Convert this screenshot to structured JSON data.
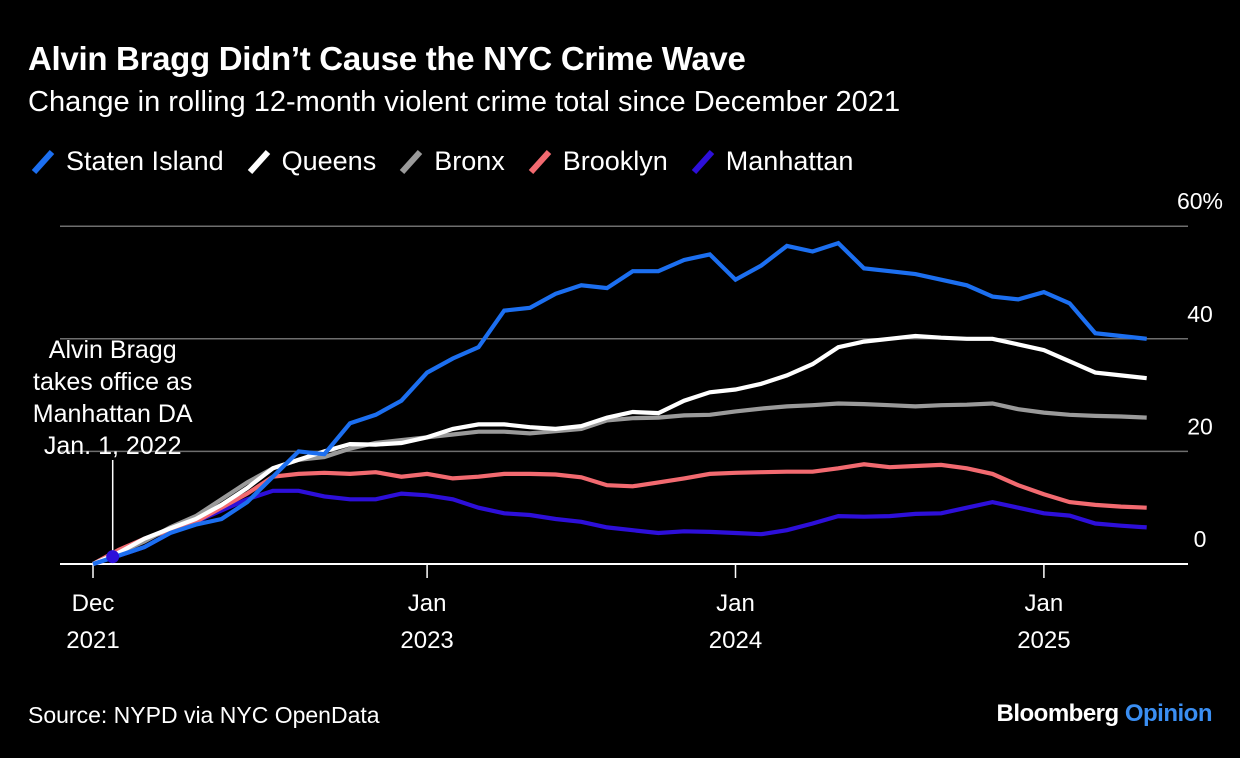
{
  "title": "Alvin Bragg Didn’t Cause the NYC Crime Wave",
  "subtitle": "Change in rolling 12-month violent crime total since December 2021",
  "source": "Source: NYPD via NYC OpenData",
  "brand": {
    "name": "Bloomberg",
    "suffix": "Opinion",
    "suffix_color": "#3a8ef2"
  },
  "annotation": {
    "lines": [
      "Alvin Bragg",
      "takes office as",
      "Manhattan DA",
      "Jan. 1, 2022"
    ],
    "x": "2022-01",
    "marker_color": "#2d0fd9"
  },
  "chart_data": {
    "type": "line",
    "x": [
      "2021-12",
      "2022-01",
      "2022-02",
      "2022-03",
      "2022-04",
      "2022-05",
      "2022-06",
      "2022-07",
      "2022-08",
      "2022-09",
      "2022-10",
      "2022-11",
      "2022-12",
      "2023-01",
      "2023-02",
      "2023-03",
      "2023-04",
      "2023-05",
      "2023-06",
      "2023-07",
      "2023-08",
      "2023-09",
      "2023-10",
      "2023-11",
      "2023-12",
      "2024-01",
      "2024-02",
      "2024-03",
      "2024-04",
      "2024-05",
      "2024-06",
      "2024-07",
      "2024-08",
      "2024-09",
      "2024-10",
      "2024-11",
      "2024-12",
      "2025-01",
      "2025-02",
      "2025-03",
      "2025-04",
      "2025-05"
    ],
    "x_ticks": [
      {
        "x": "2021-12",
        "label": [
          "Dec",
          "2021"
        ]
      },
      {
        "x": "2023-01",
        "label": [
          "Jan",
          "2023"
        ]
      },
      {
        "x": "2024-01",
        "label": [
          "Jan",
          "2024"
        ]
      },
      {
        "x": "2025-01",
        "label": [
          "Jan",
          "2025"
        ]
      }
    ],
    "y_ticks": [
      {
        "value": 0,
        "label": "0"
      },
      {
        "value": 20,
        "label": "20"
      },
      {
        "value": 40,
        "label": "40"
      },
      {
        "value": 60,
        "label": "60%"
      }
    ],
    "ylim": [
      0,
      60
    ],
    "grid": true,
    "legend_position": "top-left",
    "series": [
      {
        "name": "Manhattan",
        "color": "#2d0fd9",
        "values": [
          0,
          1.5,
          3.0,
          5.5,
          7.5,
          9.5,
          11.5,
          13,
          13,
          12,
          11.5,
          11.5,
          12.5,
          12.2,
          11.5,
          10,
          9,
          8.7,
          8,
          7.5,
          6.5,
          6,
          5.5,
          5.8,
          5.7,
          5.5,
          5.3,
          6,
          7.2,
          8.5,
          8.4,
          8.5,
          8.9,
          9.0,
          10.0,
          11.0,
          10.0,
          9.0,
          8.6,
          7.2,
          6.8,
          6.5
        ]
      },
      {
        "name": "Brooklyn",
        "color": "#f26a70",
        "values": [
          0,
          2.5,
          4.5,
          6,
          7.5,
          10,
          12.5,
          15.5,
          16,
          16.2,
          16.0,
          16.3,
          15.5,
          16,
          15.2,
          15.5,
          16,
          16,
          15.9,
          15.4,
          14,
          13.8,
          14.5,
          15.2,
          16,
          16.2,
          16.3,
          16.4,
          16.4,
          17,
          17.7,
          17.2,
          17.4,
          17.6,
          17.0,
          16.0,
          14,
          12.4,
          11,
          10.5,
          10.2,
          10.0
        ]
      },
      {
        "name": "Bronx",
        "color": "#9a9a9a",
        "values": [
          0,
          2.0,
          4.0,
          6.5,
          8.5,
          11.5,
          14.5,
          17,
          18.5,
          19,
          20.5,
          21.5,
          22,
          22.5,
          23,
          23.5,
          23.5,
          23.2,
          23.6,
          24.0,
          25.5,
          25.9,
          26.0,
          26.4,
          26.5,
          27.1,
          27.6,
          28.0,
          28.2,
          28.5,
          28.4,
          28.2,
          28.0,
          28.2,
          28.3,
          28.5,
          27.5,
          26.9,
          26.5,
          26.3,
          26.2,
          26.0
        ]
      },
      {
        "name": "Queens",
        "color": "#ffffff",
        "values": [
          0,
          2.0,
          4.5,
          6.3,
          8.0,
          10.5,
          13.5,
          17,
          18.5,
          20,
          21.3,
          21.2,
          21.5,
          22.5,
          24.0,
          24.8,
          24.8,
          24.3,
          24.0,
          24.5,
          26.0,
          27.0,
          26.8,
          29.0,
          30.5,
          31.0,
          32.0,
          33.5,
          35.5,
          38.5,
          39.5,
          40.0,
          40.5,
          40.2,
          40.0,
          40.0,
          39.0,
          38.0,
          36.0,
          34.0,
          33.5,
          33.0
        ]
      },
      {
        "name": "Staten Island",
        "color": "#1c6ff0",
        "values": [
          0,
          1.5,
          3.0,
          5.5,
          7.0,
          8.0,
          11.0,
          15.5,
          20.0,
          19.5,
          25.0,
          26.5,
          29.0,
          34.0,
          36.5,
          38.5,
          45.0,
          45.5,
          48.0,
          49.5,
          49.0,
          52.0,
          52.0,
          54.0,
          55.0,
          50.5,
          53.0,
          56.5,
          55.5,
          57.0,
          52.5,
          52.0,
          51.5,
          50.5,
          49.5,
          47.5,
          47.0,
          48.3,
          46.3,
          41.0,
          40.5,
          40.0
        ]
      }
    ]
  },
  "legend": [
    {
      "name": "Staten Island",
      "color": "#1c6ff0"
    },
    {
      "name": "Queens",
      "color": "#ffffff"
    },
    {
      "name": "Bronx",
      "color": "#9a9a9a"
    },
    {
      "name": "Brooklyn",
      "color": "#f26a70"
    },
    {
      "name": "Manhattan",
      "color": "#2d0fd9"
    }
  ]
}
